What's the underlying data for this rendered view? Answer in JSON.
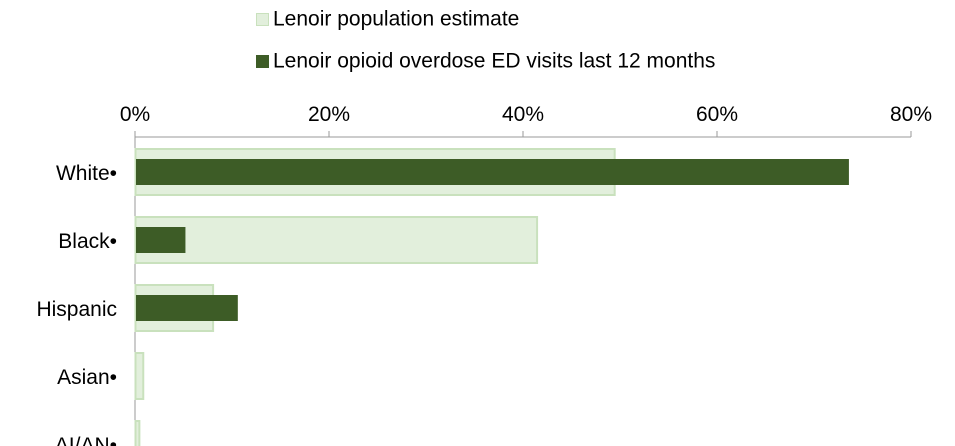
{
  "chart_data": {
    "type": "bar",
    "orientation": "horizontal",
    "categories": [
      "White•",
      "Black•",
      "Hispanic",
      "Asian•",
      "AI/AN•"
    ],
    "series": [
      {
        "name": "Lenoir population estimate",
        "values": [
          49.4,
          41.4,
          8.0,
          0.8,
          0.4
        ],
        "color": "#e2efdc",
        "stroke": "#c9e1bd"
      },
      {
        "name": "Lenoir opioid overdose ED visits last 12 months",
        "values": [
          73.6,
          5.2,
          10.6,
          0,
          0
        ],
        "color": "#3d5c26"
      }
    ],
    "xlim": [
      0,
      80
    ],
    "xticks": [
      "0%",
      "20%",
      "40%",
      "60%",
      "80%"
    ],
    "xaxis_position": "top",
    "legend_position": "top",
    "grid": false
  }
}
